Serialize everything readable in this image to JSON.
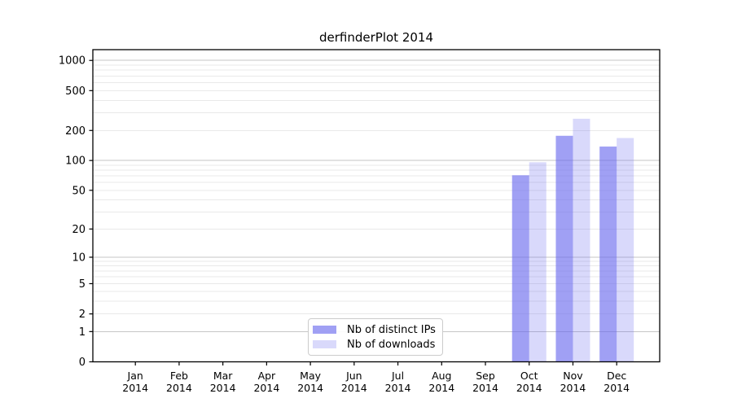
{
  "chart_data": {
    "type": "bar",
    "title": "derfinderPlot 2014",
    "xlabel": "",
    "ylabel": "",
    "year_label": "2014",
    "categories": [
      "Jan",
      "Feb",
      "Mar",
      "Apr",
      "May",
      "Jun",
      "Jul",
      "Aug",
      "Sep",
      "Oct",
      "Nov",
      "Dec"
    ],
    "series": [
      {
        "name": "Nb of distinct IPs",
        "color": "rgba(102,102,238,0.62)",
        "values": [
          0,
          0,
          0,
          0,
          0,
          0,
          0,
          0,
          0,
          71,
          177,
          138
        ]
      },
      {
        "name": "Nb of downloads",
        "color": "rgba(102,102,238,0.25)",
        "values": [
          0,
          0,
          0,
          0,
          0,
          0,
          0,
          0,
          0,
          96,
          262,
          168
        ]
      }
    ],
    "yscale": "log1p",
    "yticks": [
      0,
      1,
      2,
      5,
      10,
      20,
      50,
      100,
      200,
      500,
      1000
    ],
    "ylim": [
      0,
      1280
    ],
    "grid": {
      "enabled": true,
      "major_values": [
        1,
        10,
        100,
        1000
      ],
      "major_color": "#c6c6c6",
      "minor_color": "#e9e9e9"
    },
    "frame_color": "#000000",
    "tick_color": "#000000",
    "legend_position": "bottom-center-inside"
  },
  "legend": {
    "items": [
      {
        "label": "Nb of distinct IPs",
        "color": "rgba(102,102,238,0.62)"
      },
      {
        "label": "Nb of downloads",
        "color": "rgba(102,102,238,0.25)"
      }
    ]
  }
}
